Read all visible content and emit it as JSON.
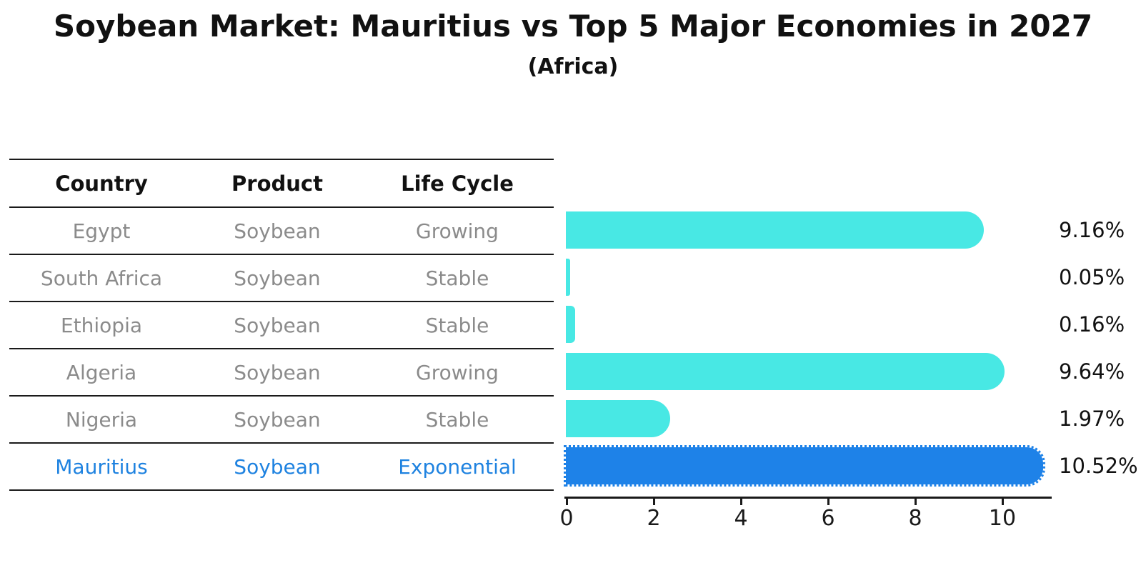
{
  "title": "Soybean Market: Mauritius vs Top 5 Major Economies in 2027",
  "subtitle": "(Africa)",
  "table": {
    "headers": [
      "Country",
      "Product",
      "Life Cycle"
    ],
    "rows": [
      {
        "country": "Egypt",
        "product": "Soybean",
        "life_cycle": "Growing",
        "highlight": false
      },
      {
        "country": "South Africa",
        "product": "Soybean",
        "life_cycle": "Stable",
        "highlight": false
      },
      {
        "country": "Ethiopia",
        "product": "Soybean",
        "life_cycle": "Stable",
        "highlight": false
      },
      {
        "country": "Algeria",
        "product": "Soybean",
        "life_cycle": "Growing",
        "highlight": false
      },
      {
        "country": "Nigeria",
        "product": "Soybean",
        "life_cycle": "Stable",
        "highlight": false
      },
      {
        "country": "Mauritius",
        "product": "Soybean",
        "life_cycle": "Exponential",
        "highlight": true
      }
    ]
  },
  "chart_data": {
    "type": "bar",
    "orientation": "horizontal",
    "title": "Soybean Market: Mauritius vs Top 5 Major Economies in 2027",
    "subtitle": "(Africa)",
    "categories": [
      "Egypt",
      "South Africa",
      "Ethiopia",
      "Algeria",
      "Nigeria",
      "Mauritius"
    ],
    "values": [
      9.16,
      0.05,
      0.16,
      9.64,
      1.97,
      10.52
    ],
    "value_labels": [
      "9.16%",
      "0.05%",
      "0.16%",
      "9.64%",
      "1.97%",
      "10.52%"
    ],
    "highlight_index": 5,
    "xticks": [
      "0",
      "2",
      "4",
      "6",
      "8",
      "10"
    ],
    "xtick_values": [
      0,
      2,
      4,
      6,
      8,
      10
    ],
    "xlim": [
      0,
      11.1
    ],
    "grid": false,
    "legend": false,
    "bar_style": "rounded-right-cap, highlight bar has dotted edge"
  },
  "colors": {
    "bar": "#48E8E4",
    "highlight_bar": "#1E82E8",
    "highlight_text": "#1E82E0",
    "row_text": "#8b8b8b",
    "header_text": "#111111",
    "axis": "#1a1a1a"
  }
}
